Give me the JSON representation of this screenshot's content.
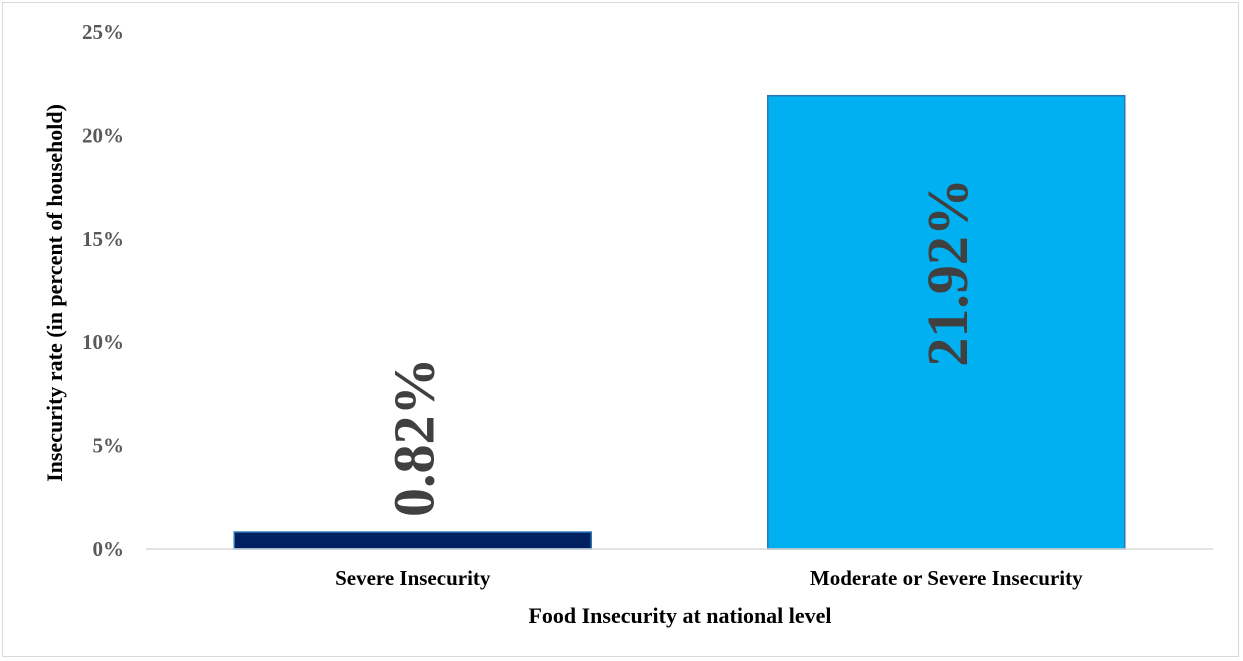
{
  "chart_data": {
    "type": "bar",
    "title": "",
    "xlabel": "Food Insecurity at national level",
    "ylabel": "Insecurity rate (in percent of household)",
    "ylim": [
      0,
      25
    ],
    "yticks": [
      0,
      5,
      10,
      15,
      20,
      25
    ],
    "ytick_labels": [
      "0%",
      "5%",
      "10%",
      "15%",
      "20%",
      "25%"
    ],
    "grid": false,
    "legend": "none",
    "categories": [
      "Severe Insecurity",
      "Moderate or Severe Insecurity"
    ],
    "values": [
      0.82,
      21.92
    ],
    "data_labels": [
      "0.82%",
      "21.92%"
    ],
    "colors": [
      "#002060",
      "#00b0f0"
    ],
    "bar_edge_color": "#2e75b6",
    "axis_text_color": "#595959",
    "label_text_color": "#404040"
  }
}
